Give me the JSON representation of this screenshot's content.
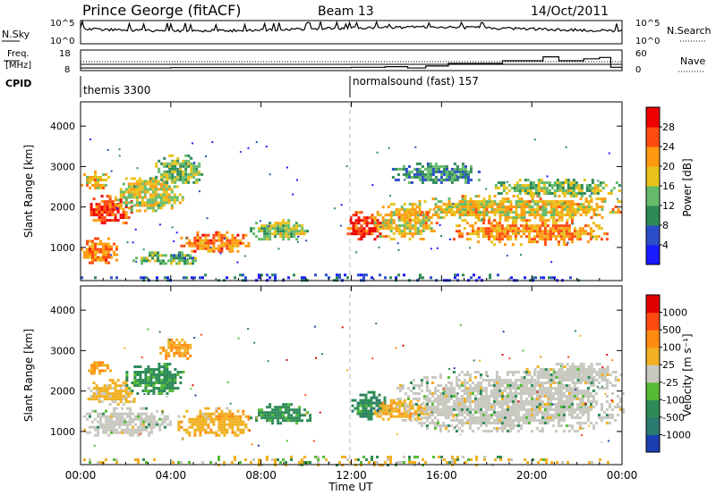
{
  "header": {
    "station": "Prince George (fitACF)",
    "beam": "Beam 13",
    "date": "14/Oct/2011"
  },
  "top_panels": {
    "nsky_label": "N.Sky",
    "nsearch_label": "N.Search",
    "nsky_ticks": [
      "10^5",
      "10^0"
    ],
    "nsearch_ticks": [
      "10^5",
      "10^0"
    ],
    "freq_label_1": "Freq.",
    "freq_label_2": "[MHz]",
    "freq_ticks": [
      "18",
      "8"
    ],
    "nave_label": "Nave",
    "nave_ticks": [
      "60",
      "0"
    ],
    "cpid_label": "CPID",
    "cpid_segments": [
      {
        "name": "themis 3300",
        "start_hour": 0
      },
      {
        "name": "normalsound (fast) 157",
        "start_hour": 12
      }
    ],
    "nave_steps": [
      {
        "hour": 0,
        "value": 8
      },
      {
        "hour": 4,
        "value": 9
      },
      {
        "hour": 8,
        "value": 9
      },
      {
        "hour": 12,
        "value": 10
      },
      {
        "hour": 13.5,
        "value": 12
      },
      {
        "hour": 14.5,
        "value": 8
      },
      {
        "hour": 15.3,
        "value": 14
      },
      {
        "hour": 16.3,
        "value": 22
      },
      {
        "hour": 18.7,
        "value": 30
      },
      {
        "hour": 20.5,
        "value": 42
      },
      {
        "hour": 21.2,
        "value": 30
      },
      {
        "hour": 22.3,
        "value": 36
      },
      {
        "hour": 23,
        "value": 40
      },
      {
        "hour": 23.5,
        "value": 10
      }
    ]
  },
  "panels": {
    "ylabel": "Slant Range [km]",
    "xlabel": "Time UT",
    "x_ticks": [
      "00:00",
      "04:00",
      "08:00",
      "12:00",
      "16:00",
      "20:00",
      "00:00"
    ],
    "y_ticks": [
      "1000",
      "2000",
      "3000",
      "4000"
    ]
  },
  "colorbars": {
    "power": {
      "label": "Power [dB]",
      "ticks": [
        "28",
        "24",
        "20",
        "16",
        "12",
        "8",
        "4"
      ],
      "colors": [
        "#1a1aff",
        "#2a4ec8",
        "#2e8b57",
        "#66bb6a",
        "#e8c21a",
        "#ff9a10",
        "#ff4a10",
        "#ee0000"
      ]
    },
    "velocity": {
      "label": "Velocity [m s⁻¹]",
      "ticks": [
        "1000",
        "500",
        "100",
        "25",
        "-25",
        "-100",
        "-500",
        "-1000"
      ],
      "colors": [
        "#1a3fb0",
        "#2a7a70",
        "#2e8b57",
        "#55bb33",
        "#c8c8c0",
        "#f0b020",
        "#ff8a10",
        "#ff4a10",
        "#e00000"
      ]
    }
  },
  "chart_data": [
    {
      "type": "heatmap",
      "title": "Power",
      "xlabel": "Time UT",
      "ylabel": "Slant Range [km]",
      "xlim_hours": [
        0,
        24
      ],
      "ylim_km": [
        180,
        4600
      ],
      "color_label": "Power [dB]",
      "color_range": [
        0,
        30
      ],
      "regions": [
        {
          "t0": 0.0,
          "t1": 1.6,
          "r0": 600,
          "r1": 1250,
          "level": 22
        },
        {
          "t0": 0.3,
          "t1": 2.3,
          "r0": 1600,
          "r1": 2300,
          "level": 26
        },
        {
          "t0": 0.0,
          "t1": 1.2,
          "r0": 2400,
          "r1": 2900,
          "level": 18
        },
        {
          "t0": 1.5,
          "t1": 4.5,
          "r0": 1900,
          "r1": 2800,
          "level": 16
        },
        {
          "t0": 3.3,
          "t1": 5.4,
          "r0": 2600,
          "r1": 3300,
          "level": 13
        },
        {
          "t0": 4.3,
          "t1": 7.5,
          "r0": 900,
          "r1": 1400,
          "level": 22
        },
        {
          "t0": 7.5,
          "t1": 10.2,
          "r0": 1200,
          "r1": 1700,
          "level": 14
        },
        {
          "t0": 2.3,
          "t1": 5.2,
          "r0": 600,
          "r1": 900,
          "level": 12
        },
        {
          "t0": 11.8,
          "t1": 13.3,
          "r0": 1200,
          "r1": 1900,
          "level": 26
        },
        {
          "t0": 13.0,
          "t1": 15.8,
          "r0": 1200,
          "r1": 2100,
          "level": 18
        },
        {
          "t0": 14.5,
          "t1": 24.0,
          "r0": 1700,
          "r1": 2300,
          "level": 18
        },
        {
          "t0": 16.5,
          "t1": 23.3,
          "r0": 1100,
          "r1": 1700,
          "level": 21
        },
        {
          "t0": 18.0,
          "t1": 24.0,
          "r0": 2300,
          "r1": 2700,
          "level": 14
        },
        {
          "t0": 13.8,
          "t1": 17.8,
          "r0": 2600,
          "r1": 3100,
          "level": 10
        },
        {
          "t0": 0.0,
          "t1": 24.0,
          "r0": 200,
          "r1": 350,
          "level": 6
        }
      ]
    },
    {
      "type": "heatmap",
      "title": "Velocity",
      "xlabel": "Time UT",
      "ylabel": "Slant Range [km]",
      "xlim_hours": [
        0,
        24
      ],
      "ylim_km": [
        180,
        4600
      ],
      "color_label": "Velocity [m s⁻¹]",
      "color_range": [
        -1000,
        1000
      ],
      "regions": [
        {
          "t0": 0.2,
          "t1": 1.3,
          "r0": 2450,
          "r1": 2800,
          "level": -300
        },
        {
          "t0": 0.3,
          "t1": 2.5,
          "r0": 1700,
          "r1": 2300,
          "level": -150
        },
        {
          "t0": 2.0,
          "t1": 4.5,
          "r0": 1950,
          "r1": 2700,
          "level": 150
        },
        {
          "t0": 3.5,
          "t1": 5.0,
          "r0": 2800,
          "r1": 3300,
          "level": -300
        },
        {
          "t0": 0.0,
          "t1": 4.0,
          "r0": 900,
          "r1": 1600,
          "level": 0
        },
        {
          "t0": 4.3,
          "t1": 7.5,
          "r0": 900,
          "r1": 1600,
          "level": -200
        },
        {
          "t0": 7.5,
          "t1": 10.2,
          "r0": 1200,
          "r1": 1700,
          "level": 150
        },
        {
          "t0": 12.0,
          "t1": 13.5,
          "r0": 1300,
          "r1": 2000,
          "level": 200
        },
        {
          "t0": 13.0,
          "t1": 15.5,
          "r0": 1300,
          "r1": 1800,
          "level": -200
        },
        {
          "t0": 14.0,
          "t1": 24.0,
          "r0": 1000,
          "r1": 2500,
          "level": 0
        },
        {
          "t0": 19.5,
          "t1": 24.0,
          "r0": 2200,
          "r1": 2700,
          "level": 0
        },
        {
          "t0": 0.0,
          "t1": 24.0,
          "r0": 200,
          "r1": 400,
          "level": -50
        }
      ]
    }
  ]
}
